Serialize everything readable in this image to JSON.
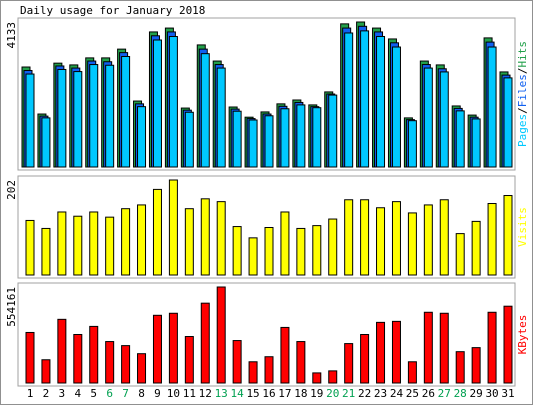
{
  "chart_data": [
    {
      "type": "bar",
      "title": "Daily usage for January 2018",
      "ylim": [
        0,
        4133
      ],
      "yticks": [
        4133
      ],
      "legend_separator": "/",
      "series": [
        {
          "name": "Pages",
          "color": "#00c8ff",
          "values": [
            2650,
            1400,
            2780,
            2720,
            2920,
            2900,
            3150,
            1720,
            3620,
            3720,
            1560,
            3230,
            2820,
            1590,
            1340,
            1460,
            1660,
            1770,
            1690,
            2050,
            3820,
            3880,
            3720,
            3420,
            1320,
            2820,
            2710,
            1600,
            1370,
            3420,
            2540
          ]
        },
        {
          "name": "Files",
          "color": "#1060f0",
          "values": [
            2750,
            1450,
            2880,
            2820,
            3020,
            3000,
            3260,
            1800,
            3740,
            3850,
            1620,
            3360,
            2920,
            1650,
            1380,
            1510,
            1730,
            1840,
            1720,
            2080,
            3960,
            4010,
            3850,
            3540,
            1350,
            2920,
            2800,
            1670,
            1420,
            3560,
            2620
          ]
        },
        {
          "name": "Hits",
          "color": "#22a04a",
          "values": [
            2850,
            1510,
            2960,
            2910,
            3110,
            3110,
            3360,
            1880,
            3850,
            3960,
            1680,
            3480,
            3020,
            1710,
            1420,
            1570,
            1800,
            1910,
            1770,
            2140,
            4080,
            4133,
            3960,
            3650,
            1400,
            3020,
            2910,
            1740,
            1480,
            3680,
            2710
          ]
        }
      ]
    },
    {
      "type": "bar",
      "ylim": [
        0,
        202
      ],
      "yticks": [
        202
      ],
      "series": [
        {
          "name": "Visits",
          "color": "#ffff00",
          "values": [
            116,
            99,
            134,
            125,
            134,
            123,
            141,
            149,
            182,
            202,
            141,
            162,
            156,
            103,
            79,
            101,
            134,
            99,
            105,
            119,
            160,
            160,
            143,
            156,
            132,
            149,
            160,
            88,
            114,
            152,
            169
          ]
        }
      ]
    },
    {
      "type": "bar",
      "ylim": [
        0,
        554161
      ],
      "yticks": [
        554161
      ],
      "categories": [
        "1",
        "2",
        "3",
        "4",
        "5",
        "6",
        "7",
        "8",
        "9",
        "10",
        "11",
        "12",
        "13",
        "14",
        "15",
        "16",
        "17",
        "18",
        "19",
        "20",
        "21",
        "22",
        "23",
        "24",
        "25",
        "26",
        "27",
        "28",
        "29",
        "30",
        "31"
      ],
      "category_colors": [
        "#000000",
        "#000000",
        "#000000",
        "#000000",
        "#000000",
        "#00a050",
        "#00a050",
        "#000000",
        "#000000",
        "#000000",
        "#000000",
        "#000000",
        "#00a050",
        "#00a050",
        "#000000",
        "#000000",
        "#000000",
        "#000000",
        "#000000",
        "#00a050",
        "#00a050",
        "#000000",
        "#000000",
        "#000000",
        "#000000",
        "#000000",
        "#00a050",
        "#00a050",
        "#000000",
        "#000000",
        "#000000"
      ],
      "series": [
        {
          "name": "KBytes",
          "color": "#ff0000",
          "values": [
            291700,
            134200,
            367500,
            280000,
            326700,
            239200,
            215800,
            169200,
            390800,
            402500,
            268300,
            460800,
            554161,
            245000,
            122500,
            151700,
            320800,
            239200,
            58300,
            70000,
            227500,
            280000,
            350000,
            355800,
            122500,
            408300,
            402500,
            180800,
            204200,
            408300,
            443300
          ]
        }
      ]
    }
  ]
}
